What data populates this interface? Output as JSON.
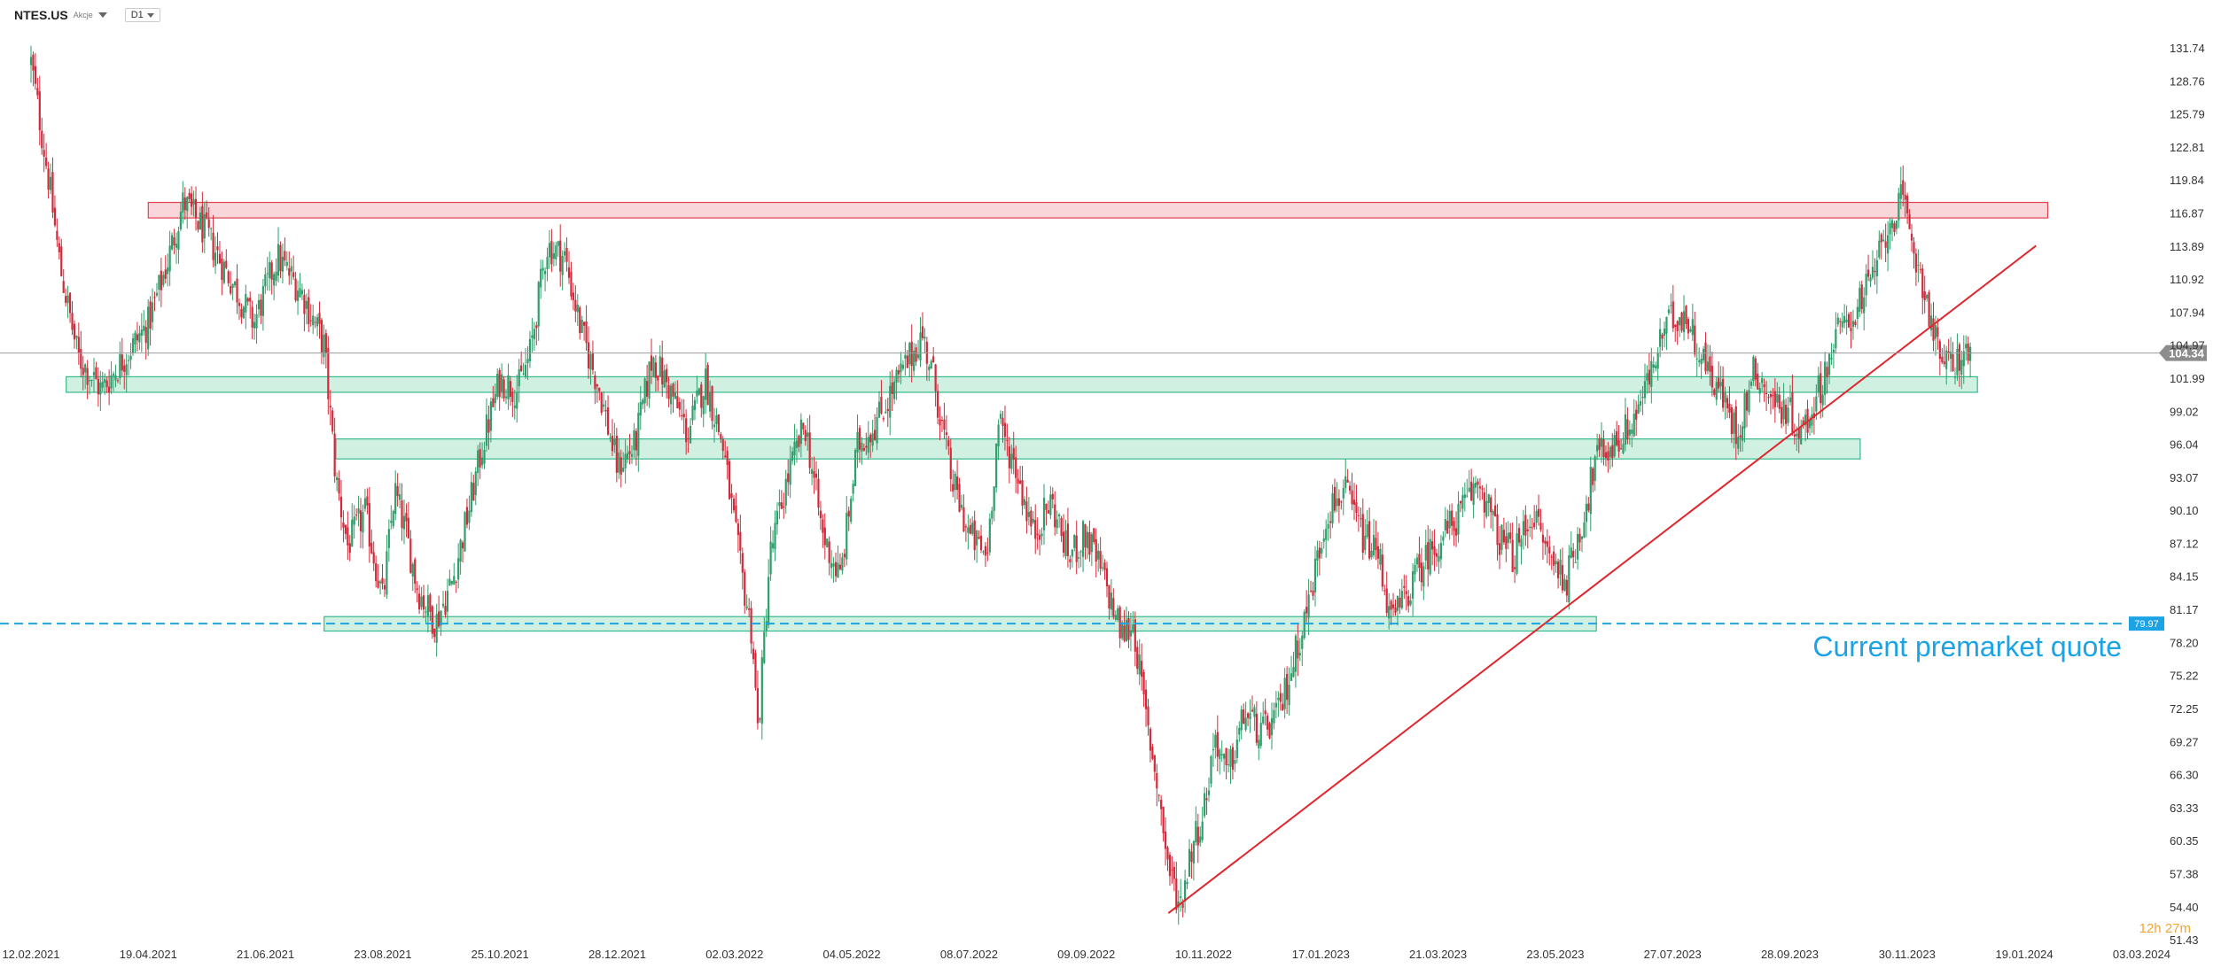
{
  "header": {
    "ticker": "NTES.US",
    "ticker_sub": "Akcje",
    "interval": "D1"
  },
  "annotation": {
    "premarket_label": "Current premarket quote"
  },
  "session_timer": {
    "hours": "12",
    "h_unit": "h",
    "minutes": "27",
    "m_unit": "m"
  },
  "colors": {
    "up": "#2e9e6a",
    "down": "#d22a3a",
    "resistance_fill": "#f7cfd2",
    "resistance_stroke": "#e04250",
    "support_fill": "#c8eedd",
    "support_stroke": "#35b98b",
    "trendline": "#e0262c",
    "premarket": "#1ba3e6"
  },
  "chart_data": {
    "type": "candlestick",
    "symbol": "NTES.US",
    "x_ticks": [
      "12.02.2021",
      "19.04.2021",
      "21.06.2021",
      "23.08.2021",
      "25.10.2021",
      "28.12.2021",
      "02.03.2022",
      "04.05.2022",
      "08.07.2022",
      "09.09.2022",
      "10.11.2022",
      "17.01.2023",
      "21.03.2023",
      "23.05.2023",
      "27.07.2023",
      "28.09.2023",
      "30.11.2023",
      "19.01.2024",
      "03.03.2024"
    ],
    "y_ticks": [
      131.74,
      128.76,
      125.79,
      122.81,
      119.84,
      116.87,
      113.89,
      110.92,
      107.94,
      104.97,
      101.99,
      99.02,
      96.04,
      93.07,
      90.1,
      87.12,
      84.15,
      81.17,
      78.2,
      75.22,
      72.25,
      69.27,
      66.3,
      63.33,
      60.35,
      57.38,
      54.4,
      51.43
    ],
    "y_range": [
      51.43,
      131.74
    ],
    "last_price": 104.34,
    "premarket_price": 79.97,
    "zones": [
      {
        "kind": "resistance",
        "low": 116.5,
        "high": 117.9,
        "x_start_index": 1,
        "x_end_index": 17.2
      },
      {
        "kind": "support",
        "low": 100.8,
        "high": 102.2,
        "x_start_index": 0.3,
        "x_end_index": 16.6
      },
      {
        "kind": "support",
        "low": 94.8,
        "high": 96.6,
        "x_start_index": 2.6,
        "x_end_index": 15.6
      },
      {
        "kind": "support",
        "low": 79.3,
        "high": 80.6,
        "x_start_index": 2.5,
        "x_end_index": 13.35
      }
    ],
    "trendline": {
      "from": {
        "x_index": 9.7,
        "price": 53.9
      },
      "to": {
        "x_index": 17.1,
        "price": 114.0
      }
    },
    "close_path": [
      [
        0,
        130.5
      ],
      [
        0.15,
        120
      ],
      [
        0.25,
        112
      ],
      [
        0.4,
        104
      ],
      [
        0.6,
        101
      ],
      [
        0.8,
        104
      ],
      [
        1.0,
        107
      ],
      [
        1.15,
        112
      ],
      [
        1.3,
        118
      ],
      [
        1.5,
        115
      ],
      [
        1.7,
        111
      ],
      [
        1.9,
        107
      ],
      [
        2.1,
        113
      ],
      [
        2.3,
        110
      ],
      [
        2.5,
        105
      ],
      [
        2.6,
        93
      ],
      [
        2.7,
        87
      ],
      [
        2.85,
        90
      ],
      [
        3.0,
        82
      ],
      [
        3.1,
        92
      ],
      [
        3.2,
        88
      ],
      [
        3.3,
        83
      ],
      [
        3.45,
        80
      ],
      [
        3.6,
        84
      ],
      [
        3.75,
        91
      ],
      [
        3.85,
        96
      ],
      [
        4.0,
        102
      ],
      [
        4.15,
        101
      ],
      [
        4.25,
        104
      ],
      [
        4.4,
        114
      ],
      [
        4.55,
        113
      ],
      [
        4.7,
        106
      ],
      [
        4.85,
        101
      ],
      [
        5.0,
        94
      ],
      [
        5.15,
        96
      ],
      [
        5.3,
        104
      ],
      [
        5.45,
        101
      ],
      [
        5.6,
        97
      ],
      [
        5.75,
        102
      ],
      [
        5.9,
        96
      ],
      [
        6.05,
        85
      ],
      [
        6.15,
        79
      ],
      [
        6.2,
        70
      ],
      [
        6.3,
        86
      ],
      [
        6.45,
        93
      ],
      [
        6.6,
        98
      ],
      [
        6.75,
        88
      ],
      [
        6.9,
        84
      ],
      [
        7.05,
        96
      ],
      [
        7.2,
        98
      ],
      [
        7.35,
        101
      ],
      [
        7.5,
        104
      ],
      [
        7.6,
        106
      ],
      [
        7.7,
        102
      ],
      [
        7.85,
        93
      ],
      [
        8.0,
        88
      ],
      [
        8.15,
        86
      ],
      [
        8.25,
        98
      ],
      [
        8.4,
        94
      ],
      [
        8.55,
        88
      ],
      [
        8.7,
        91
      ],
      [
        8.85,
        86
      ],
      [
        9.0,
        88
      ],
      [
        9.15,
        84
      ],
      [
        9.3,
        79
      ],
      [
        9.4,
        80
      ],
      [
        9.5,
        72
      ],
      [
        9.6,
        66
      ],
      [
        9.7,
        58
      ],
      [
        9.8,
        54.5
      ],
      [
        9.9,
        60
      ],
      [
        10.0,
        63
      ],
      [
        10.1,
        70
      ],
      [
        10.2,
        66
      ],
      [
        10.35,
        72
      ],
      [
        10.5,
        70
      ],
      [
        10.65,
        72
      ],
      [
        10.8,
        78
      ],
      [
        10.9,
        82
      ],
      [
        11.05,
        90
      ],
      [
        11.2,
        92
      ],
      [
        11.35,
        88
      ],
      [
        11.5,
        86
      ],
      [
        11.6,
        80
      ],
      [
        11.75,
        83
      ],
      [
        11.9,
        86
      ],
      [
        12.05,
        88
      ],
      [
        12.2,
        90
      ],
      [
        12.35,
        93
      ],
      [
        12.5,
        88
      ],
      [
        12.65,
        86
      ],
      [
        12.8,
        90
      ],
      [
        12.95,
        86
      ],
      [
        13.1,
        84
      ],
      [
        13.25,
        90
      ],
      [
        13.35,
        95
      ],
      [
        13.5,
        96
      ],
      [
        13.65,
        98
      ],
      [
        13.8,
        102
      ],
      [
        13.95,
        107
      ],
      [
        14.1,
        108
      ],
      [
        14.25,
        104
      ],
      [
        14.4,
        101
      ],
      [
        14.55,
        97
      ],
      [
        14.7,
        103
      ],
      [
        14.85,
        100
      ],
      [
        15.0,
        99
      ],
      [
        15.1,
        97
      ],
      [
        15.25,
        101
      ],
      [
        15.4,
        106
      ],
      [
        15.55,
        108
      ],
      [
        15.7,
        111
      ],
      [
        15.85,
        116
      ],
      [
        15.95,
        118
      ],
      [
        16.05,
        114
      ],
      [
        16.15,
        110
      ],
      [
        16.25,
        105
      ],
      [
        16.35,
        103
      ],
      [
        16.45,
        104
      ],
      [
        16.55,
        104.3
      ]
    ]
  }
}
